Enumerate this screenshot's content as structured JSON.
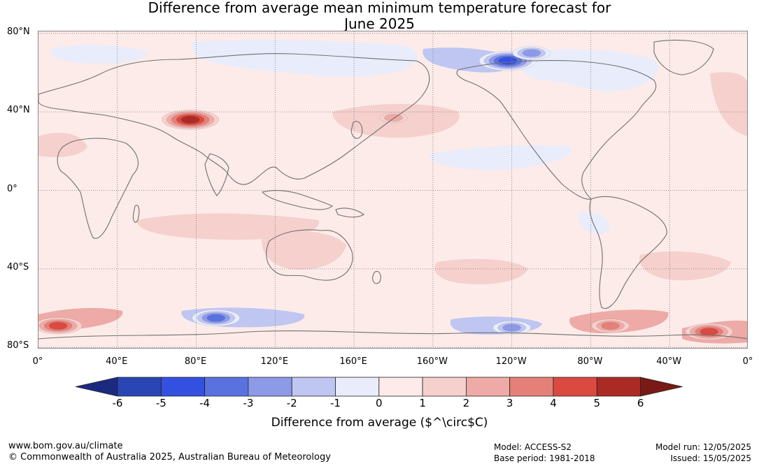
{
  "title_line1": "Difference from average mean minimum temperature forecast for",
  "title_line2": "June 2025",
  "map": {
    "lat_labels": [
      "80°N",
      "40°N",
      "0°",
      "40°S",
      "80°S"
    ],
    "lon_labels": [
      "0°",
      "40°E",
      "80°E",
      "120°E",
      "160°E",
      "160°W",
      "120°W",
      "80°W",
      "40°W",
      "0°"
    ],
    "anomalies": [
      {
        "label": "Tibet warm spot",
        "lon": 77,
        "lat": 36,
        "level": 5
      },
      {
        "label": "North Pacific warm band",
        "lon": 180,
        "lat": 37,
        "level": 2
      },
      {
        "label": "South Atlantic warm cell",
        "lon": 340,
        "lat": -72,
        "level": 4
      },
      {
        "label": "Southern Ocean warm cell (10E)",
        "lon": 10,
        "lat": -69,
        "level": 4
      },
      {
        "label": "Southern Ocean warm cell (70W)",
        "lon": 290,
        "lat": -69,
        "level": 3
      },
      {
        "label": "Southern Ocean cold band (80E)",
        "lon": 90,
        "lat": -65,
        "level": -4
      },
      {
        "label": "Southern Ocean cold band (120W)",
        "lon": 240,
        "lat": -70,
        "level": -3
      },
      {
        "label": "East Siberia cold spot",
        "lon": 238,
        "lat": 66,
        "level": -5
      },
      {
        "label": "Arctic cold region",
        "lon": 250,
        "lat": 70,
        "level": -3
      }
    ]
  },
  "colorbar": {
    "levels": [
      "-6",
      "-5",
      "-4",
      "-3",
      "-2",
      "-1",
      "0",
      "1",
      "2",
      "3",
      "4",
      "5",
      "6"
    ],
    "colors": [
      "#1b2a80",
      "#2a46b5",
      "#3450e0",
      "#5a72e0",
      "#8c9ae8",
      "#bfc6f2",
      "#e9ecfb",
      "#fcebe9",
      "#f5d0cd",
      "#eeaaa6",
      "#e58078",
      "#db4a40",
      "#ac2a24",
      "#7a1a16"
    ],
    "label": "Difference from average ($^\\circ$C)"
  },
  "footer": {
    "website": "www.bom.gov.au/climate",
    "copyright": "© Commonwealth of Australia 2025, Australian Bureau of Meteorology",
    "model": "Model: ACCESS-S2",
    "base_period": "Base period: 1981-2018",
    "model_run": "Model run: 12/05/2025",
    "issued": "Issued: 15/05/2025"
  }
}
